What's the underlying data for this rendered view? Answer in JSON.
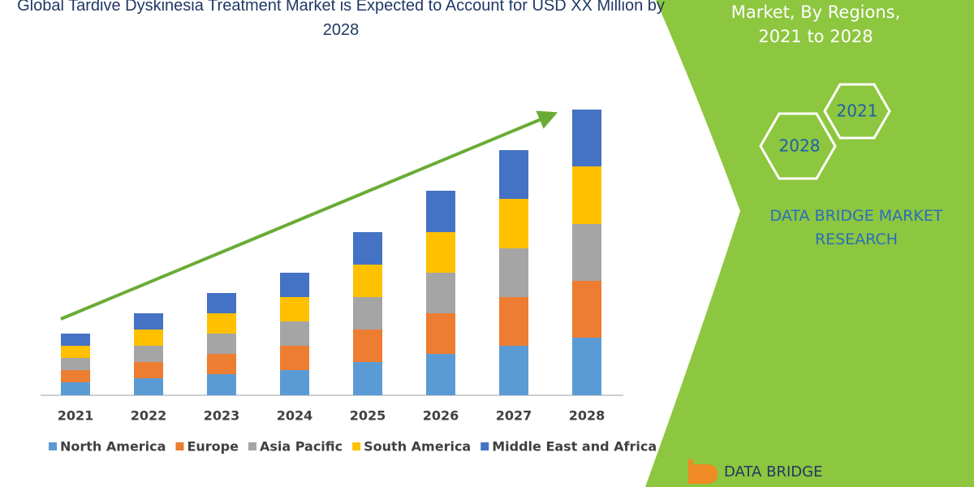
{
  "chart_data": {
    "type": "stacked_bar",
    "title": "Global Tardive Dyskinesia Treatment Market is Expected to Account for USD XX Million by 2028",
    "categories": [
      "2021",
      "2022",
      "2023",
      "2024",
      "2025",
      "2026",
      "2027",
      "2028"
    ],
    "series": [
      {
        "name": "North America",
        "color": "#5b9bd5",
        "values": [
          16,
          21,
          26,
          31,
          41,
          51,
          61,
          71
        ]
      },
      {
        "name": "Europe",
        "color": "#ed7d31",
        "values": [
          15,
          20,
          25,
          30,
          40,
          50,
          60,
          70
        ]
      },
      {
        "name": "Asia Pacific",
        "color": "#a5a5a5",
        "values": [
          15,
          20,
          25,
          30,
          40,
          50,
          60,
          70
        ]
      },
      {
        "name": "South America",
        "color": "#ffc000",
        "values": [
          15,
          20,
          25,
          30,
          40,
          50,
          61,
          71
        ]
      },
      {
        "name": "Middle East and Africa",
        "color": "#4472c4",
        "values": [
          15,
          20,
          25,
          30,
          40,
          51,
          60,
          70
        ]
      }
    ],
    "ylim": [
      0,
      352
    ]
  },
  "panel": {
    "heading_lines": [
      "Market, By Regions,",
      "2021 to 2028"
    ],
    "hexagons": [
      "2021",
      "2028"
    ],
    "brand": "DATA BRIDGE MARKET RESEARCH",
    "logo": "DATA BRIDGE"
  }
}
